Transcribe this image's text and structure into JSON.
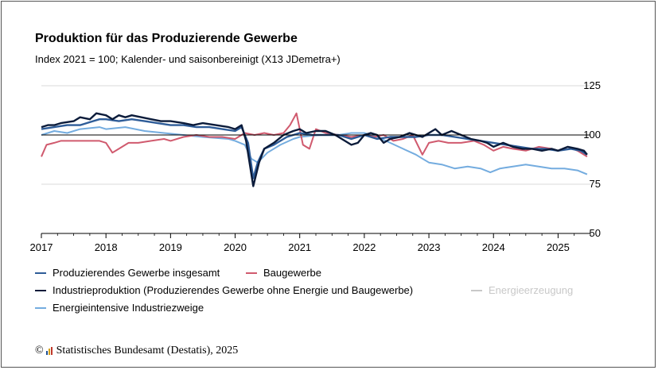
{
  "title": "Produktion für das Produzierende Gewerbe",
  "subtitle": "Index 2021 = 100; Kalender- und saisonbereinigt (X13 JDemetra+)",
  "source": {
    "copyright_symbol": "©",
    "text": "Statistisches Bundesamt (Destatis), 2025",
    "logo_colors": [
      "#1d4f91",
      "#d4a017",
      "#c0392b"
    ]
  },
  "legend": [
    {
      "label": "Produzierendes Gewerbe insgesamt",
      "color": "#2e5c98",
      "muted": false
    },
    {
      "label": "Baugewerbe",
      "color": "#d05a6e",
      "muted": false
    },
    {
      "label": "Industrieproduktion (Produzierendes Gewerbe ohne Energie und Baugewerbe)",
      "color": "#0b1b3a",
      "muted": false
    },
    {
      "label": "Energieerzeugung",
      "color": "#c8c8c8",
      "muted": true
    },
    {
      "label": "Energieintensive Industriezweige",
      "color": "#74acdf",
      "muted": false
    }
  ],
  "chart_data": {
    "type": "line",
    "title": "Produktion für das Produzierende Gewerbe",
    "subtitle": "Index 2021 = 100; Kalender- und saisonbereinigt (X13 JDemetra+)",
    "xlabel": "",
    "ylabel": "",
    "x_ticks": [
      "2017",
      "2018",
      "2019",
      "2020",
      "2021",
      "2022",
      "2023",
      "2024",
      "2025"
    ],
    "y_ticks": [
      50,
      75,
      100,
      125
    ],
    "ylim": [
      50,
      125
    ],
    "xlim": [
      2017.0,
      2025.5
    ],
    "reference_line": 100,
    "series": [
      {
        "name": "Energieintensive Industriezweige",
        "color": "#74acdf",
        "points": [
          [
            2017.0,
            100
          ],
          [
            2017.2,
            102
          ],
          [
            2017.4,
            101
          ],
          [
            2017.6,
            103
          ],
          [
            2017.9,
            104
          ],
          [
            2018.0,
            103
          ],
          [
            2018.3,
            104
          ],
          [
            2018.6,
            102
          ],
          [
            2018.9,
            101
          ],
          [
            2019.2,
            100
          ],
          [
            2019.5,
            99
          ],
          [
            2019.9,
            98
          ],
          [
            2020.0,
            97
          ],
          [
            2020.15,
            95
          ],
          [
            2020.25,
            88
          ],
          [
            2020.35,
            86
          ],
          [
            2020.5,
            91
          ],
          [
            2020.7,
            95
          ],
          [
            2020.9,
            98
          ],
          [
            2021.0,
            99
          ],
          [
            2021.3,
            100
          ],
          [
            2021.6,
            100
          ],
          [
            2021.8,
            101
          ],
          [
            2022.0,
            101
          ],
          [
            2022.2,
            99
          ],
          [
            2022.4,
            96
          ],
          [
            2022.6,
            93
          ],
          [
            2022.8,
            90
          ],
          [
            2022.9,
            88
          ],
          [
            2023.0,
            86
          ],
          [
            2023.2,
            85
          ],
          [
            2023.4,
            83
          ],
          [
            2023.6,
            84
          ],
          [
            2023.8,
            83
          ],
          [
            2023.95,
            81
          ],
          [
            2024.1,
            83
          ],
          [
            2024.3,
            84
          ],
          [
            2024.5,
            85
          ],
          [
            2024.7,
            84
          ],
          [
            2024.9,
            83
          ],
          [
            2025.1,
            83
          ],
          [
            2025.3,
            82
          ],
          [
            2025.45,
            80
          ]
        ]
      },
      {
        "name": "Baugewerbe",
        "color": "#d05a6e",
        "points": [
          [
            2017.0,
            89
          ],
          [
            2017.08,
            95
          ],
          [
            2017.2,
            96
          ],
          [
            2017.3,
            97
          ],
          [
            2017.5,
            97
          ],
          [
            2017.7,
            97
          ],
          [
            2017.9,
            97
          ],
          [
            2018.0,
            96
          ],
          [
            2018.1,
            91
          ],
          [
            2018.2,
            93
          ],
          [
            2018.35,
            96
          ],
          [
            2018.5,
            96
          ],
          [
            2018.7,
            97
          ],
          [
            2018.9,
            98
          ],
          [
            2019.0,
            97
          ],
          [
            2019.2,
            99
          ],
          [
            2019.4,
            100
          ],
          [
            2019.6,
            99
          ],
          [
            2019.8,
            99
          ],
          [
            2020.0,
            98
          ],
          [
            2020.15,
            101
          ],
          [
            2020.3,
            100
          ],
          [
            2020.45,
            101
          ],
          [
            2020.6,
            100
          ],
          [
            2020.75,
            101
          ],
          [
            2020.85,
            105
          ],
          [
            2020.95,
            111
          ],
          [
            2021.05,
            95
          ],
          [
            2021.15,
            93
          ],
          [
            2021.25,
            103
          ],
          [
            2021.4,
            101
          ],
          [
            2021.6,
            100
          ],
          [
            2021.8,
            99
          ],
          [
            2022.0,
            100
          ],
          [
            2022.15,
            99
          ],
          [
            2022.3,
            100
          ],
          [
            2022.45,
            97
          ],
          [
            2022.6,
            98
          ],
          [
            2022.75,
            100
          ],
          [
            2022.9,
            90
          ],
          [
            2023.0,
            96
          ],
          [
            2023.15,
            97
          ],
          [
            2023.3,
            96
          ],
          [
            2023.5,
            96
          ],
          [
            2023.7,
            97
          ],
          [
            2023.85,
            95
          ],
          [
            2024.0,
            92
          ],
          [
            2024.15,
            94
          ],
          [
            2024.3,
            93
          ],
          [
            2024.5,
            92
          ],
          [
            2024.7,
            94
          ],
          [
            2024.9,
            93
          ],
          [
            2025.0,
            92
          ],
          [
            2025.15,
            94
          ],
          [
            2025.3,
            92
          ],
          [
            2025.4,
            90
          ],
          [
            2025.45,
            89
          ]
        ]
      },
      {
        "name": "Produzierendes Gewerbe insgesamt",
        "color": "#2e5c98",
        "points": [
          [
            2017.0,
            103
          ],
          [
            2017.2,
            104
          ],
          [
            2017.4,
            105
          ],
          [
            2017.6,
            105
          ],
          [
            2017.8,
            107
          ],
          [
            2017.9,
            108
          ],
          [
            2018.0,
            108
          ],
          [
            2018.2,
            107
          ],
          [
            2018.4,
            108
          ],
          [
            2018.6,
            107
          ],
          [
            2018.8,
            106
          ],
          [
            2019.0,
            105
          ],
          [
            2019.2,
            105
          ],
          [
            2019.4,
            104
          ],
          [
            2019.6,
            104
          ],
          [
            2019.8,
            103
          ],
          [
            2020.0,
            102
          ],
          [
            2020.1,
            104
          ],
          [
            2020.2,
            96
          ],
          [
            2020.28,
            78
          ],
          [
            2020.35,
            86
          ],
          [
            2020.45,
            93
          ],
          [
            2020.6,
            95
          ],
          [
            2020.8,
            99
          ],
          [
            2021.0,
            101
          ],
          [
            2021.2,
            100
          ],
          [
            2021.4,
            100
          ],
          [
            2021.6,
            100
          ],
          [
            2021.8,
            98
          ],
          [
            2022.0,
            100
          ],
          [
            2022.2,
            98
          ],
          [
            2022.4,
            99
          ],
          [
            2022.6,
            99
          ],
          [
            2022.8,
            99
          ],
          [
            2023.0,
            100
          ],
          [
            2023.2,
            100
          ],
          [
            2023.4,
            99
          ],
          [
            2023.6,
            98
          ],
          [
            2023.8,
            97
          ],
          [
            2024.0,
            96
          ],
          [
            2024.2,
            95
          ],
          [
            2024.4,
            94
          ],
          [
            2024.6,
            93
          ],
          [
            2024.8,
            93
          ],
          [
            2025.0,
            92
          ],
          [
            2025.2,
            93
          ],
          [
            2025.35,
            92
          ],
          [
            2025.45,
            90
          ]
        ]
      },
      {
        "name": "Industrieproduktion (Produzierendes Gewerbe ohne Energie und Baugewerbe)",
        "color": "#0b1b3a",
        "points": [
          [
            2017.0,
            104
          ],
          [
            2017.1,
            105
          ],
          [
            2017.2,
            105
          ],
          [
            2017.3,
            106
          ],
          [
            2017.5,
            107
          ],
          [
            2017.6,
            109
          ],
          [
            2017.75,
            108
          ],
          [
            2017.85,
            111
          ],
          [
            2018.0,
            110
          ],
          [
            2018.1,
            108
          ],
          [
            2018.2,
            110
          ],
          [
            2018.3,
            109
          ],
          [
            2018.4,
            110
          ],
          [
            2018.55,
            109
          ],
          [
            2018.7,
            108
          ],
          [
            2018.85,
            107
          ],
          [
            2019.0,
            107
          ],
          [
            2019.2,
            106
          ],
          [
            2019.35,
            105
          ],
          [
            2019.5,
            106
          ],
          [
            2019.7,
            105
          ],
          [
            2019.9,
            104
          ],
          [
            2020.0,
            103
          ],
          [
            2020.1,
            105
          ],
          [
            2020.17,
            97
          ],
          [
            2020.28,
            74
          ],
          [
            2020.37,
            86
          ],
          [
            2020.45,
            93
          ],
          [
            2020.6,
            96
          ],
          [
            2020.75,
            100
          ],
          [
            2020.9,
            102
          ],
          [
            2021.0,
            103
          ],
          [
            2021.1,
            101
          ],
          [
            2021.25,
            102
          ],
          [
            2021.4,
            102
          ],
          [
            2021.55,
            100
          ],
          [
            2021.7,
            97
          ],
          [
            2021.8,
            95
          ],
          [
            2021.9,
            96
          ],
          [
            2022.0,
            100
          ],
          [
            2022.1,
            101
          ],
          [
            2022.2,
            100
          ],
          [
            2022.3,
            96
          ],
          [
            2022.4,
            98
          ],
          [
            2022.55,
            99
          ],
          [
            2022.7,
            101
          ],
          [
            2022.8,
            100
          ],
          [
            2022.9,
            99
          ],
          [
            2023.0,
            101
          ],
          [
            2023.1,
            103
          ],
          [
            2023.2,
            100
          ],
          [
            2023.35,
            102
          ],
          [
            2023.5,
            100
          ],
          [
            2023.65,
            98
          ],
          [
            2023.8,
            97
          ],
          [
            2023.9,
            96
          ],
          [
            2024.0,
            94
          ],
          [
            2024.15,
            96
          ],
          [
            2024.3,
            94
          ],
          [
            2024.45,
            93
          ],
          [
            2024.6,
            93
          ],
          [
            2024.75,
            92
          ],
          [
            2024.9,
            93
          ],
          [
            2025.0,
            92
          ],
          [
            2025.15,
            94
          ],
          [
            2025.3,
            93
          ],
          [
            2025.4,
            92
          ],
          [
            2025.45,
            90
          ]
        ]
      }
    ]
  }
}
